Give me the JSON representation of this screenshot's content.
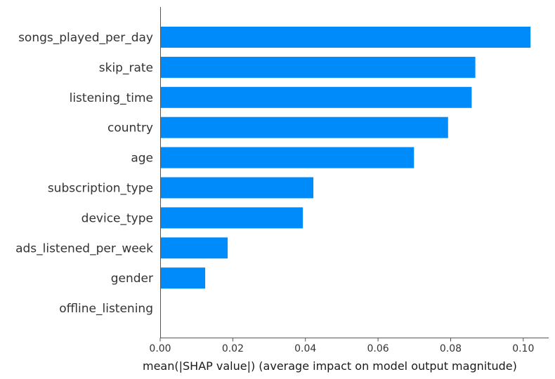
{
  "chart_data": {
    "type": "bar",
    "orientation": "horizontal",
    "title": "",
    "xlabel": "mean(|SHAP value|) (average impact on model output magnitude)",
    "ylabel": "",
    "categories": [
      "songs_played_per_day",
      "skip_rate",
      "listening_time",
      "country",
      "age",
      "subscription_type",
      "device_type",
      "ads_listened_per_week",
      "gender",
      "offline_listening"
    ],
    "values": [
      0.102,
      0.0868,
      0.0858,
      0.0793,
      0.0699,
      0.0422,
      0.0393,
      0.0186,
      0.0124,
      0.0
    ],
    "xlim": [
      0.0,
      0.107
    ],
    "xticks": [
      "0.00",
      "0.02",
      "0.04",
      "0.06",
      "0.08",
      "0.10"
    ],
    "grid": false,
    "legend": "none",
    "bar_color": "#008bfb",
    "axis_color": "#555555"
  }
}
